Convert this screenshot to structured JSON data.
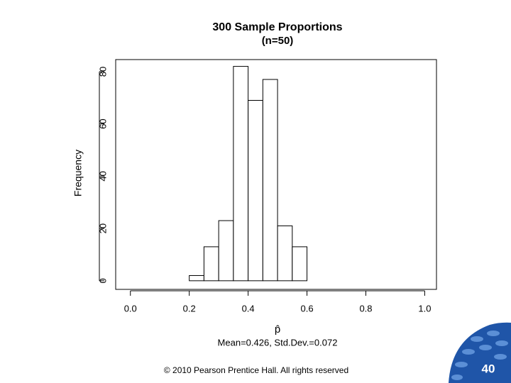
{
  "chart_data": {
    "type": "histogram",
    "title": "300 Sample Proportions",
    "subtitle": "(n=50)",
    "xlabel": "p̂",
    "note": "Mean=0.426, Std.Dev.=0.072",
    "ylabel": "Frequency",
    "bins": [
      0.2,
      0.25,
      0.3,
      0.35,
      0.4,
      0.45,
      0.5,
      0.55,
      0.6
    ],
    "values": [
      2,
      13,
      23,
      82,
      69,
      77,
      21,
      13
    ],
    "color": "#ffffff",
    "edgecolor": "#000000",
    "xlim": [
      -0.05,
      1.04
    ],
    "ylim": [
      -3.3,
      84.6
    ],
    "xticks": [
      {
        "value": 0,
        "label": "0.0"
      },
      0.2,
      0.4,
      0.6,
      0.8,
      {
        "value": 1,
        "label": "1.0"
      }
    ],
    "yticks": [
      0,
      20,
      40,
      60,
      80
    ]
  },
  "footer": "© 2010 Pearson Prentice Hall. All rights reserved",
  "page_number": "40"
}
